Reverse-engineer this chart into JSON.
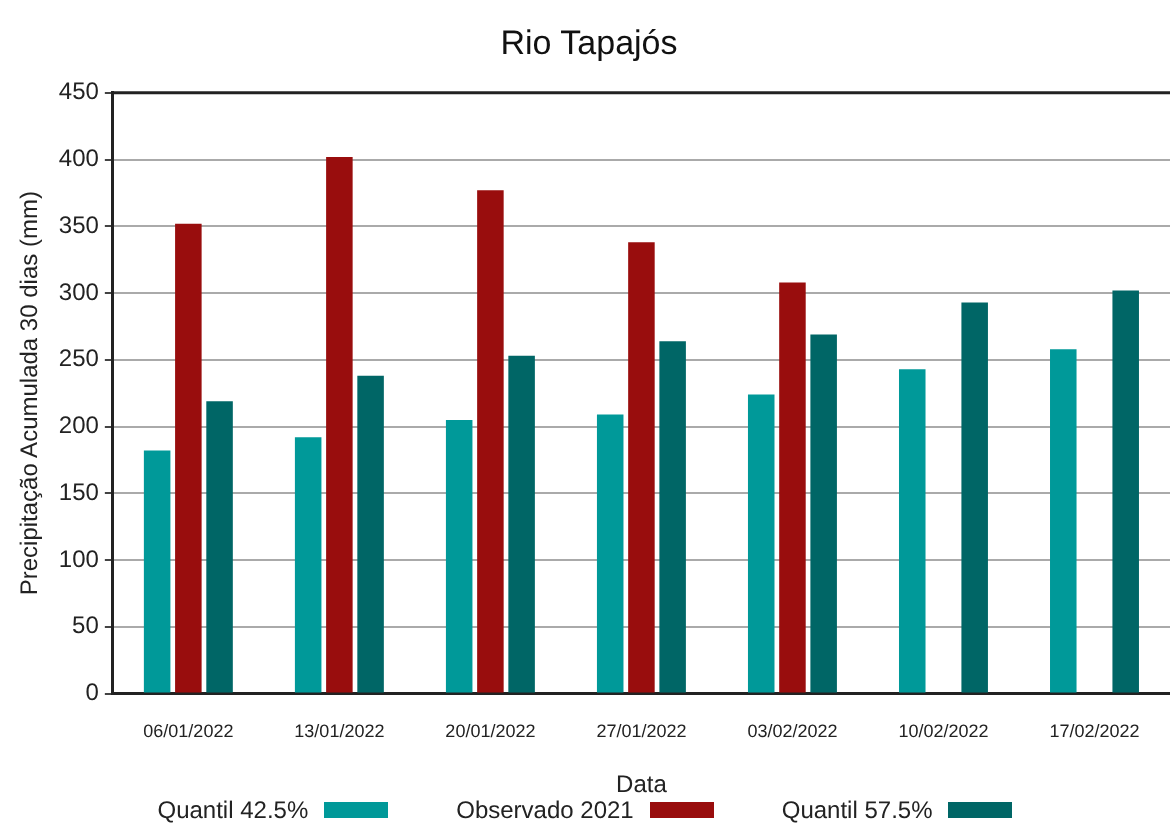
{
  "chart_data": {
    "type": "bar",
    "title": "Rio Tapajós",
    "xlabel": "Data",
    "ylabel": "Precipitação Acumulada 30 dias (mm)",
    "categories": [
      "06/01/2022",
      "13/01/2022",
      "20/01/2022",
      "27/01/2022",
      "03/02/2022",
      "10/02/2022",
      "17/02/2022"
    ],
    "series": [
      {
        "name": "Quantil 42.5%",
        "color": "#009999",
        "values": [
          182,
          192,
          205,
          209,
          224,
          243,
          258
        ]
      },
      {
        "name": "Observado 2021",
        "color": "#990d0d",
        "values": [
          352,
          402,
          377,
          338,
          308,
          null,
          null
        ]
      },
      {
        "name": "Quantil 57.5%",
        "color": "#006666",
        "values": [
          219,
          238,
          253,
          264,
          269,
          293,
          302
        ]
      }
    ],
    "ylim": [
      0,
      450
    ],
    "yticks": [
      0,
      50,
      100,
      150,
      200,
      250,
      300,
      350,
      400,
      450
    ],
    "grid": "y",
    "legend": "bottom"
  }
}
